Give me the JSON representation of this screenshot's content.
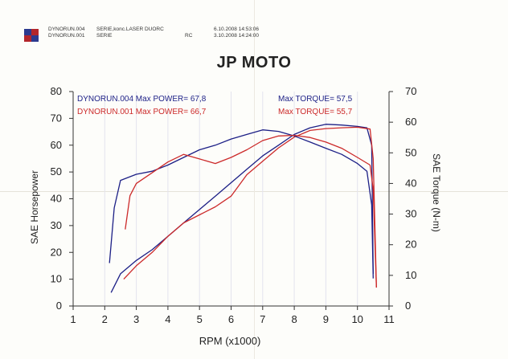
{
  "header": {
    "runs": [
      {
        "name": "DYNORUN.004",
        "desc": "SERIE,konc.LASER DUORC",
        "date": "6.10.2008 14:53:06"
      },
      {
        "name": "DYNORUN.001",
        "desc": "SERIE",
        "code": "RC",
        "date": "3.10.2008 14:24:00"
      }
    ]
  },
  "colors": {
    "run004": "#1c1f86",
    "run001": "#cc2a2a"
  },
  "chart_data": {
    "type": "line",
    "title": "JP MOTO",
    "xlabel": "RPM (x1000)",
    "ylabel": "SAE Horsepower",
    "y2label": "SAE Torque (N-m)",
    "xlim": [
      1,
      11
    ],
    "ylim": [
      0,
      80
    ],
    "y2lim": [
      0,
      70
    ],
    "xticks": [
      1,
      2,
      3,
      4,
      5,
      6,
      7,
      8,
      9,
      10,
      11
    ],
    "yticks": [
      0,
      10,
      20,
      30,
      40,
      50,
      60,
      70,
      80
    ],
    "y2ticks": [
      0,
      10,
      20,
      30,
      40,
      50,
      60,
      70
    ],
    "grid": true,
    "annotations": {
      "run004_power": "DYNORUN.004  Max POWER= 67,8",
      "run001_power": "DYNORUN.001  Max POWER= 66,7",
      "run004_torque": "Max TORQUE= 57,5",
      "run001_torque": "Max TORQUE= 55,7"
    },
    "series": [
      {
        "run": "DYNORUN.004",
        "axis": "left",
        "measure": "power",
        "x": [
          2.2,
          2.5,
          3.0,
          3.5,
          4.0,
          4.5,
          5.0,
          5.5,
          6.0,
          6.5,
          7.0,
          7.5,
          8.0,
          8.5,
          9.0,
          9.5,
          10.0,
          10.3,
          10.45,
          10.5
        ],
        "y": [
          5,
          12,
          17,
          21,
          26,
          31,
          36,
          41,
          46,
          51,
          56,
          60,
          64,
          66.5,
          67.8,
          67.5,
          67,
          66.5,
          60,
          12
        ]
      },
      {
        "run": "DYNORUN.001",
        "axis": "left",
        "measure": "power",
        "x": [
          2.6,
          3.0,
          3.5,
          4.0,
          4.5,
          5.0,
          5.5,
          6.0,
          6.5,
          7.0,
          7.5,
          8.0,
          8.5,
          9.0,
          9.5,
          10.0,
          10.4,
          10.5,
          10.6
        ],
        "y": [
          10,
          15,
          20,
          26,
          31,
          34,
          37,
          41,
          49,
          54,
          59,
          63,
          65.5,
          66.2,
          66.5,
          66.7,
          66,
          55,
          7
        ]
      },
      {
        "run": "DYNORUN.004",
        "axis": "right",
        "measure": "torque",
        "x": [
          2.15,
          2.3,
          2.5,
          3.0,
          3.5,
          4.0,
          4.5,
          5.0,
          5.5,
          6.0,
          6.5,
          7.0,
          7.5,
          8.0,
          8.5,
          9.0,
          9.5,
          10.0,
          10.3,
          10.45,
          10.5
        ],
        "y": [
          14,
          32,
          41,
          43,
          44,
          46,
          48.5,
          51,
          52.5,
          54.5,
          56,
          57.5,
          57,
          55.5,
          53.5,
          51.5,
          49.5,
          46.5,
          44,
          33,
          9
        ]
      },
      {
        "run": "DYNORUN.001",
        "axis": "right",
        "measure": "torque",
        "x": [
          2.65,
          2.8,
          3.0,
          3.5,
          4.0,
          4.5,
          5.0,
          5.5,
          6.0,
          6.5,
          7.0,
          7.5,
          8.0,
          8.5,
          9.0,
          9.5,
          10.0,
          10.4,
          10.5,
          10.6
        ],
        "y": [
          25,
          36,
          40,
          43.5,
          47,
          49.5,
          48,
          46.5,
          48.5,
          51,
          54,
          55.5,
          55.7,
          55,
          53.5,
          51.5,
          48.5,
          46,
          38,
          6
        ]
      }
    ]
  }
}
